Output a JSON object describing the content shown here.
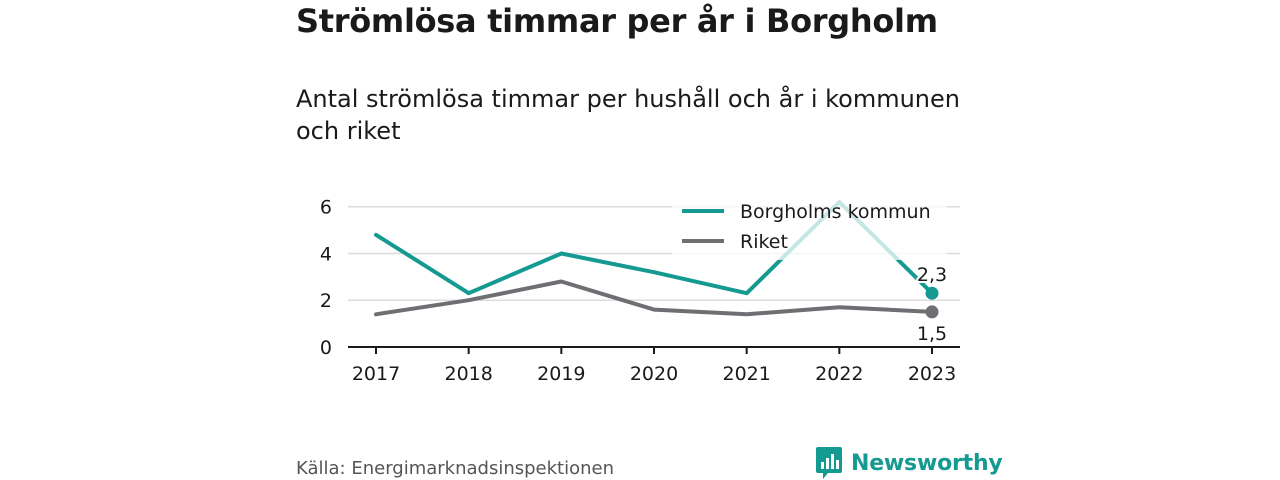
{
  "title": "Strömlösa timmar per år i Borgholm",
  "subtitle": "Antal strömlösa timmar per hushåll och år i kommunen och riket",
  "source": "Källa: Energimarknadsinspektionen",
  "brand": {
    "name": "Newsworthy",
    "icon": "newsworthy-logo-icon",
    "color": "#159a92"
  },
  "chart_data": {
    "type": "line",
    "x": [
      "2017",
      "2018",
      "2019",
      "2020",
      "2021",
      "2022",
      "2023"
    ],
    "y_ticks": [
      "0",
      "2",
      "4",
      "6"
    ],
    "ylim": [
      0,
      6.5
    ],
    "grid": true,
    "legend_position": "top-right",
    "series": [
      {
        "name": "Borgholms kommun",
        "color": "#159a92",
        "values": [
          4.8,
          2.3,
          4.0,
          3.2,
          2.3,
          6.2,
          2.3
        ],
        "end_label": "2,3"
      },
      {
        "name": "Riket",
        "color": "#6e6e73",
        "values": [
          1.4,
          2.0,
          2.8,
          1.6,
          1.4,
          1.7,
          1.5
        ],
        "end_label": "1,5"
      }
    ]
  }
}
